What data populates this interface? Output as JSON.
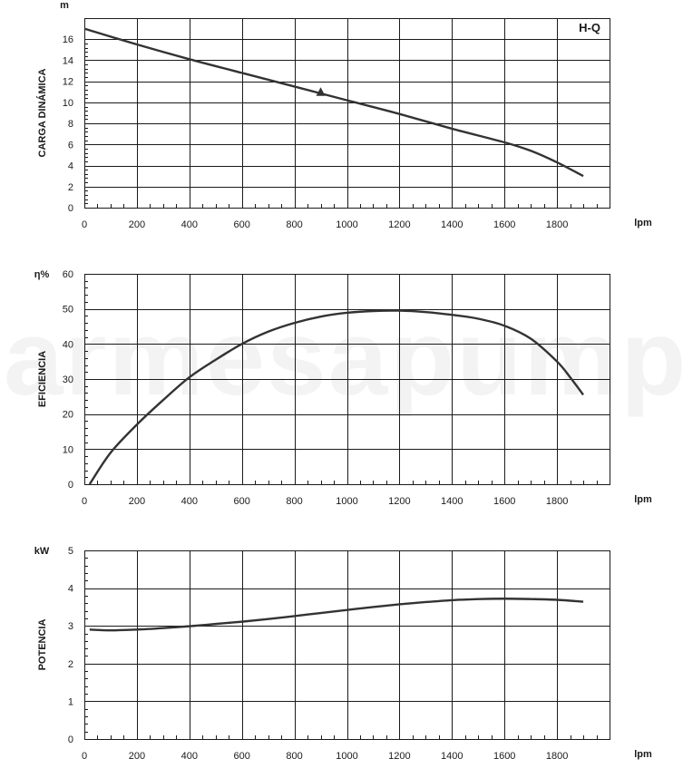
{
  "watermark": "parmesapumps",
  "chart_data": [
    {
      "type": "line",
      "curve_name": "H-Q",
      "xunit": "lpm",
      "yunit": "m",
      "ylabel": "CARGA DINÁMICA",
      "xlim": [
        0,
        2000
      ],
      "ylim": [
        0,
        18
      ],
      "xticks": [
        0,
        200,
        400,
        600,
        800,
        1000,
        1200,
        1400,
        1600,
        1800
      ],
      "yticks": [
        0,
        2,
        4,
        6,
        8,
        10,
        12,
        14,
        16
      ],
      "grid": true,
      "series": [
        {
          "x": [
            0,
            200,
            400,
            600,
            800,
            1000,
            1200,
            1400,
            1600,
            1700,
            1800,
            1900
          ],
          "y": [
            17.0,
            15.5,
            14.1,
            12.8,
            11.5,
            10.2,
            8.9,
            7.5,
            6.2,
            5.4,
            4.3,
            3.0
          ]
        }
      ],
      "markers": [
        {
          "x": 900,
          "y": 11.0,
          "shape": "triangle"
        }
      ]
    },
    {
      "type": "line",
      "xunit": "lpm",
      "yunit": "η%",
      "ylabel": "EFICIENCIA",
      "xlim": [
        0,
        2000
      ],
      "ylim": [
        0,
        60
      ],
      "xticks": [
        0,
        200,
        400,
        600,
        800,
        1000,
        1200,
        1400,
        1600,
        1800
      ],
      "yticks": [
        0,
        10,
        20,
        30,
        40,
        50,
        60
      ],
      "grid": true,
      "series": [
        {
          "x": [
            20,
            100,
            200,
            300,
            400,
            500,
            600,
            700,
            800,
            900,
            1000,
            1100,
            1200,
            1300,
            1400,
            1500,
            1600,
            1700,
            1800,
            1850,
            1900
          ],
          "y": [
            0,
            9,
            17,
            24,
            30.5,
            35.5,
            40,
            43.5,
            46,
            47.8,
            48.9,
            49.4,
            49.5,
            49.1,
            48.3,
            47.2,
            45.2,
            41.5,
            35,
            30.5,
            25.5
          ]
        }
      ]
    },
    {
      "type": "line",
      "xunit": "lpm",
      "yunit": "kW",
      "ylabel": "POTENCIA",
      "xlim": [
        0,
        2000
      ],
      "ylim": [
        0,
        5
      ],
      "xticks": [
        0,
        200,
        400,
        600,
        800,
        1000,
        1200,
        1400,
        1600,
        1800
      ],
      "yticks": [
        0,
        1,
        2,
        3,
        4,
        5
      ],
      "grid": true,
      "series": [
        {
          "x": [
            20,
            100,
            200,
            300,
            400,
            500,
            600,
            700,
            800,
            900,
            1000,
            1100,
            1200,
            1300,
            1400,
            1500,
            1600,
            1700,
            1800,
            1900
          ],
          "y": [
            2.9,
            2.88,
            2.9,
            2.94,
            2.99,
            3.05,
            3.11,
            3.18,
            3.26,
            3.34,
            3.42,
            3.5,
            3.57,
            3.63,
            3.68,
            3.71,
            3.72,
            3.71,
            3.69,
            3.64
          ]
        }
      ]
    }
  ]
}
